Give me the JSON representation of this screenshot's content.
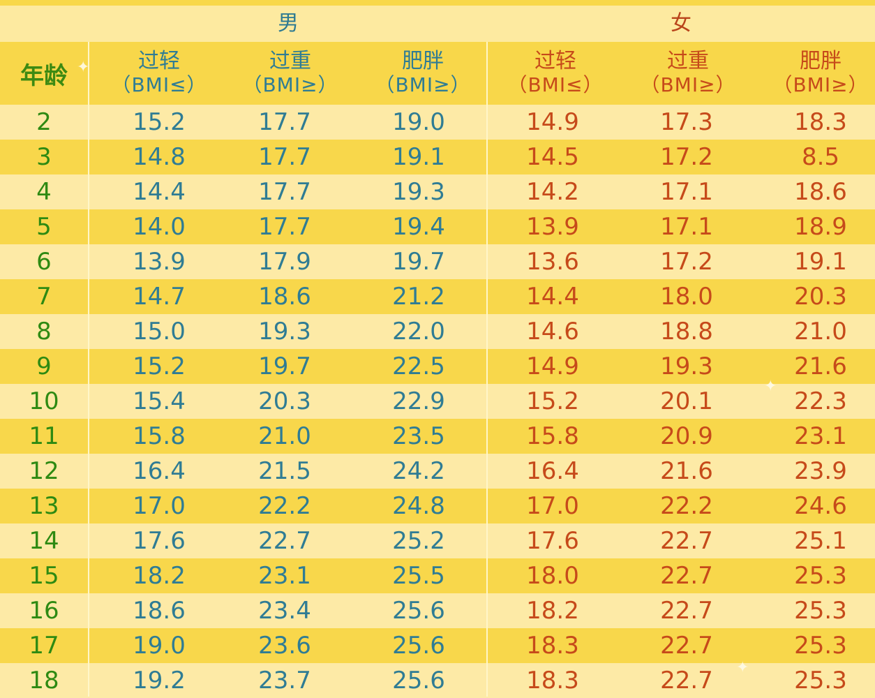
{
  "table": {
    "gender_headers": {
      "male": "男",
      "female": "女"
    },
    "column_headers": {
      "age": "年龄",
      "male": [
        {
          "label": "过轻",
          "sub": "（BMI≤）"
        },
        {
          "label": "过重",
          "sub": "（BMI≥）"
        },
        {
          "label": "肥胖",
          "sub": "（BMI≥）"
        }
      ],
      "female": [
        {
          "label": "过轻",
          "sub": "（BMI≤）"
        },
        {
          "label": "过重",
          "sub": "（BMI≥）"
        },
        {
          "label": "肥胖",
          "sub": "（BMI≥）"
        }
      ]
    },
    "rows": [
      {
        "age": "2",
        "m": [
          "15.2",
          "17.7",
          "19.0"
        ],
        "f": [
          "14.9",
          "17.3",
          "18.3"
        ]
      },
      {
        "age": "3",
        "m": [
          "14.8",
          "17.7",
          "19.1"
        ],
        "f": [
          "14.5",
          "17.2",
          "8.5"
        ]
      },
      {
        "age": "4",
        "m": [
          "14.4",
          "17.7",
          "19.3"
        ],
        "f": [
          "14.2",
          "17.1",
          "18.6"
        ]
      },
      {
        "age": "5",
        "m": [
          "14.0",
          "17.7",
          "19.4"
        ],
        "f": [
          "13.9",
          "17.1",
          "18.9"
        ]
      },
      {
        "age": "6",
        "m": [
          "13.9",
          "17.9",
          "19.7"
        ],
        "f": [
          "13.6",
          "17.2",
          "19.1"
        ]
      },
      {
        "age": "7",
        "m": [
          "14.7",
          "18.6",
          "21.2"
        ],
        "f": [
          "14.4",
          "18.0",
          "20.3"
        ]
      },
      {
        "age": "8",
        "m": [
          "15.0",
          "19.3",
          "22.0"
        ],
        "f": [
          "14.6",
          "18.8",
          "21.0"
        ]
      },
      {
        "age": "9",
        "m": [
          "15.2",
          "19.7",
          "22.5"
        ],
        "f": [
          "14.9",
          "19.3",
          "21.6"
        ]
      },
      {
        "age": "10",
        "m": [
          "15.4",
          "20.3",
          "22.9"
        ],
        "f": [
          "15.2",
          "20.1",
          "22.3"
        ]
      },
      {
        "age": "11",
        "m": [
          "15.8",
          "21.0",
          "23.5"
        ],
        "f": [
          "15.8",
          "20.9",
          "23.1"
        ]
      },
      {
        "age": "12",
        "m": [
          "16.4",
          "21.5",
          "24.2"
        ],
        "f": [
          "16.4",
          "21.6",
          "23.9"
        ]
      },
      {
        "age": "13",
        "m": [
          "17.0",
          "22.2",
          "24.8"
        ],
        "f": [
          "17.0",
          "22.2",
          "24.6"
        ]
      },
      {
        "age": "14",
        "m": [
          "17.6",
          "22.7",
          "25.2"
        ],
        "f": [
          "17.6",
          "22.7",
          "25.1"
        ]
      },
      {
        "age": "15",
        "m": [
          "18.2",
          "23.1",
          "25.5"
        ],
        "f": [
          "18.0",
          "22.7",
          "25.3"
        ]
      },
      {
        "age": "16",
        "m": [
          "18.6",
          "23.4",
          "25.6"
        ],
        "f": [
          "18.2",
          "22.7",
          "25.3"
        ]
      },
      {
        "age": "17",
        "m": [
          "19.0",
          "23.6",
          "25.6"
        ],
        "f": [
          "18.3",
          "22.7",
          "25.3"
        ]
      },
      {
        "age": "18",
        "m": [
          "19.2",
          "23.7",
          "25.6"
        ],
        "f": [
          "18.3",
          "22.7",
          "25.3"
        ]
      }
    ]
  },
  "colors": {
    "row_light": "#fdeaa6",
    "row_dark": "#f8d74b",
    "age_text": "#2e8a12",
    "male_text": "#2f7c94",
    "female_text": "#c64a1a"
  }
}
